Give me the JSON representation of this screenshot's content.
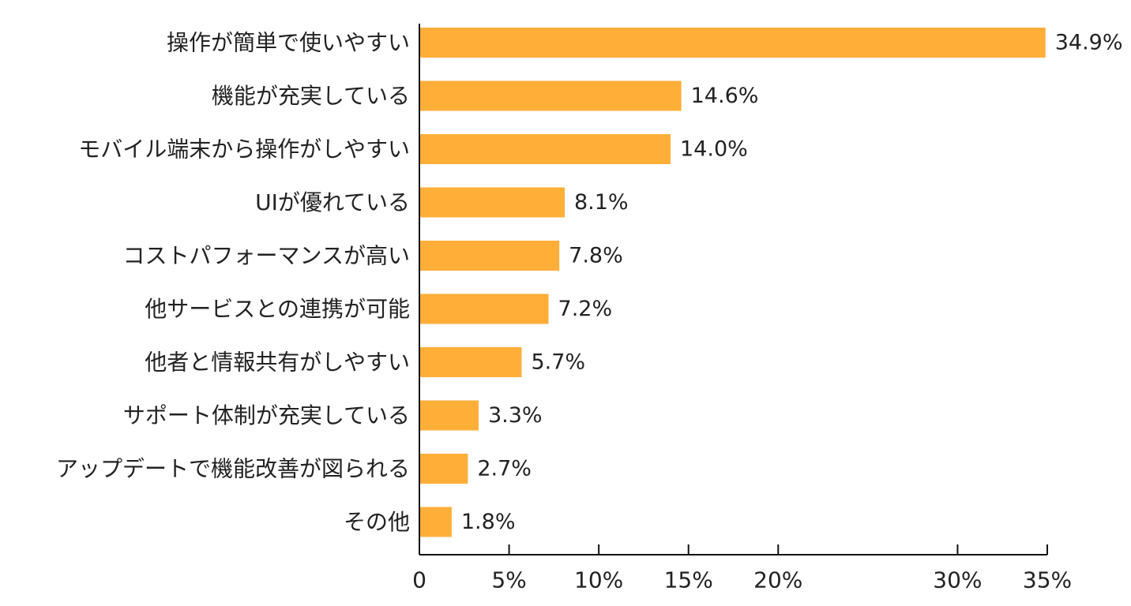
{
  "chart_data": {
    "type": "bar",
    "orientation": "horizontal",
    "title": "",
    "xlabel": "",
    "ylabel": "",
    "categories": [
      "操作が簡単で使いやすい",
      "機能が充実している",
      "モバイル端末から操作がしやすい",
      "UIが優れている",
      "コストパフォーマンスが高い",
      "他サービスとの連携が可能",
      "他者と情報共有がしやすい",
      "サポート体制が充実している",
      "アップデートで機能改善が図られる",
      "その他"
    ],
    "values": [
      34.9,
      14.6,
      14.0,
      8.1,
      7.8,
      7.2,
      5.7,
      3.3,
      2.7,
      1.8
    ],
    "value_labels": [
      "34.9%",
      "14.6%",
      "14.0%",
      "8.1%",
      "7.8%",
      "7.2%",
      "5.7%",
      "3.3%",
      "2.7%",
      "1.8%"
    ],
    "xlim": [
      0,
      35
    ],
    "x_ticks": [
      0,
      5,
      10,
      15,
      20,
      30,
      35
    ],
    "x_tick_labels": [
      "0",
      "5%",
      "10%",
      "15%",
      "20%",
      "30%",
      "35%"
    ],
    "grid": false,
    "bar_color": "#FFAE38"
  }
}
